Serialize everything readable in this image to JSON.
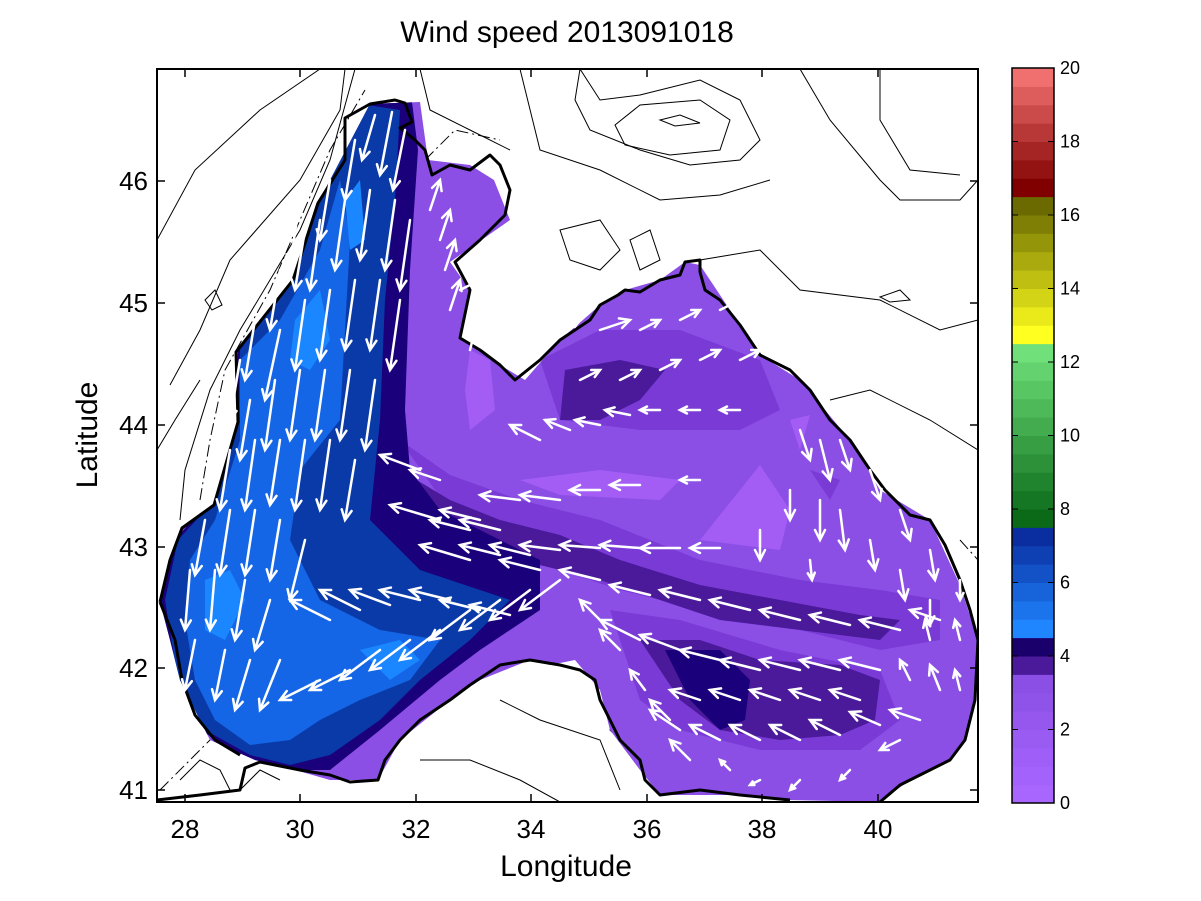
{
  "title": "Wind speed 2013091018",
  "xlabel": "Longitude",
  "ylabel": "Latitude",
  "x_ticks": [
    "28",
    "30",
    "32",
    "34",
    "36",
    "38",
    "40"
  ],
  "y_ticks": [
    "41",
    "42",
    "43",
    "44",
    "45",
    "46"
  ],
  "colorbar": {
    "ticks": [
      "0",
      "2",
      "4",
      "6",
      "8",
      "10",
      "12",
      "14",
      "16",
      "18",
      "20"
    ],
    "bands": [
      {
        "from": 0,
        "to": 3.5,
        "color": "#8b4fe6",
        "color2": "#a866ff"
      },
      {
        "from": 3.5,
        "to": 4.5,
        "color": "#1a006a",
        "color2": "#4a1a9a"
      },
      {
        "from": 4.5,
        "to": 7.5,
        "color": "#0a2ea0",
        "color2": "#1f86ff"
      },
      {
        "from": 7.5,
        "to": 12.5,
        "color": "#6fe07a",
        "color2": "#0a6a18"
      },
      {
        "from": 12.5,
        "to": 16.5,
        "color": "#6a6a00",
        "color2": "#ffff20"
      },
      {
        "from": 16.5,
        "to": 20,
        "color": "#f07070",
        "color2": "#800000"
      }
    ]
  },
  "colors": {
    "land_contour": "#000000",
    "calm_sea": "#8b4fe6",
    "dark_purple": "#4a1a9a",
    "navy": "#1a007a",
    "blue": "#0a3aa8",
    "bright_blue": "#1a7aff",
    "arrows": "#ffffff"
  },
  "map_extent": {
    "lon": [
      27.5,
      41.7
    ],
    "lat": [
      40.9,
      46.9
    ]
  }
}
